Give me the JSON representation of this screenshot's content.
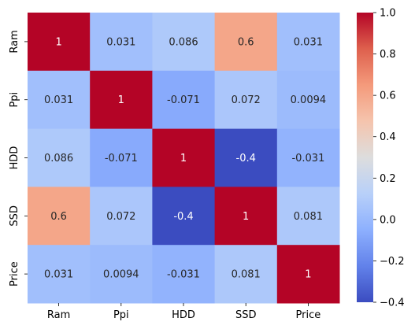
{
  "chart_data": {
    "type": "heatmap",
    "title": "",
    "xlabel": "",
    "ylabel": "",
    "x_categories": [
      "Ram",
      "Ppi",
      "HDD",
      "SSD",
      "Price"
    ],
    "y_categories": [
      "Ram",
      "Ppi",
      "HDD",
      "SSD",
      "Price"
    ],
    "matrix": [
      [
        1,
        0.031,
        0.086,
        0.6,
        0.031
      ],
      [
        0.031,
        1,
        -0.071,
        0.072,
        0.0094
      ],
      [
        0.086,
        -0.071,
        1,
        -0.4,
        -0.031
      ],
      [
        0.6,
        0.072,
        -0.4,
        1,
        0.081
      ],
      [
        0.031,
        0.0094,
        -0.031,
        0.081,
        1
      ]
    ],
    "annotations": [
      [
        "1",
        "0.031",
        "0.086",
        "0.6",
        "0.031"
      ],
      [
        "0.031",
        "1",
        "-0.071",
        "0.072",
        "0.0094"
      ],
      [
        "0.086",
        "-0.071",
        "1",
        "-0.4",
        "-0.031"
      ],
      [
        "0.6",
        "0.072",
        "-0.4",
        "1",
        "0.081"
      ],
      [
        "0.031",
        "0.0094",
        "-0.031",
        "0.081",
        "1"
      ]
    ],
    "colormap": "coolwarm",
    "colorbar": {
      "range": [
        -0.4,
        1.0
      ],
      "ticks": [
        -0.4,
        -0.2,
        0.0,
        0.2,
        0.4,
        0.6,
        0.8,
        1.0
      ],
      "tick_labels": [
        "−0.4",
        "−0.2",
        "0.0",
        "0.2",
        "0.4",
        "0.6",
        "0.8",
        "1.0"
      ]
    }
  }
}
